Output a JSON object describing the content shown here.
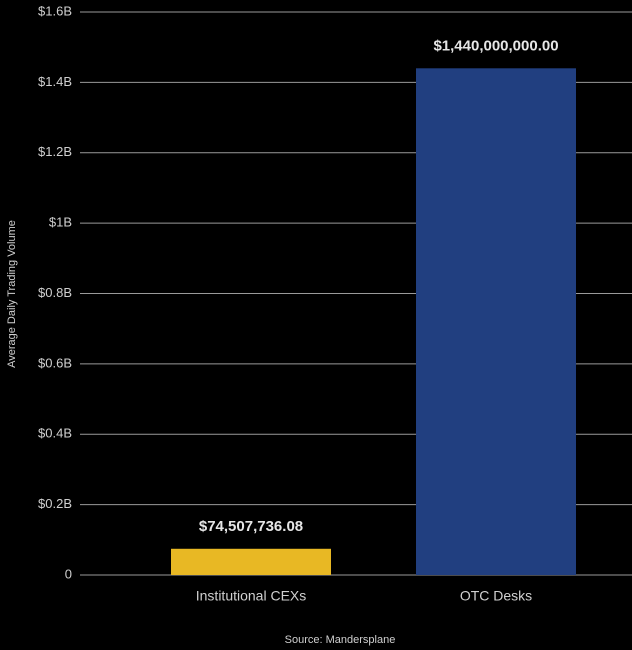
{
  "chart_data": {
    "type": "bar",
    "y_label": "Average Daily Trading Volume",
    "source": "Source: Mandersplane",
    "categories": [
      "Institutional CEXs",
      "OTC Desks"
    ],
    "values": [
      74507736.08,
      1440000000
    ],
    "value_labels": [
      "$74,507,736.08",
      "$1,440,000,000.00"
    ],
    "colors": [
      "#e8b824",
      "#213f80"
    ],
    "ylim": [
      0,
      1600000000
    ],
    "yticks": [
      0,
      {
        "value": 200000000,
        "label": "$0.2B"
      },
      {
        "value": 400000000,
        "label": "$0.4B"
      },
      {
        "value": 600000000,
        "label": "$0.6B"
      },
      {
        "value": 800000000,
        "label": "$0.8B"
      },
      {
        "value": 1000000000,
        "label": "$1B"
      },
      {
        "value": 1200000000,
        "label": "$1.2B"
      },
      {
        "value": 1400000000,
        "label": "$1.4B"
      },
      {
        "value": 1600000000,
        "label": "$1.6B"
      }
    ],
    "grid": true
  }
}
